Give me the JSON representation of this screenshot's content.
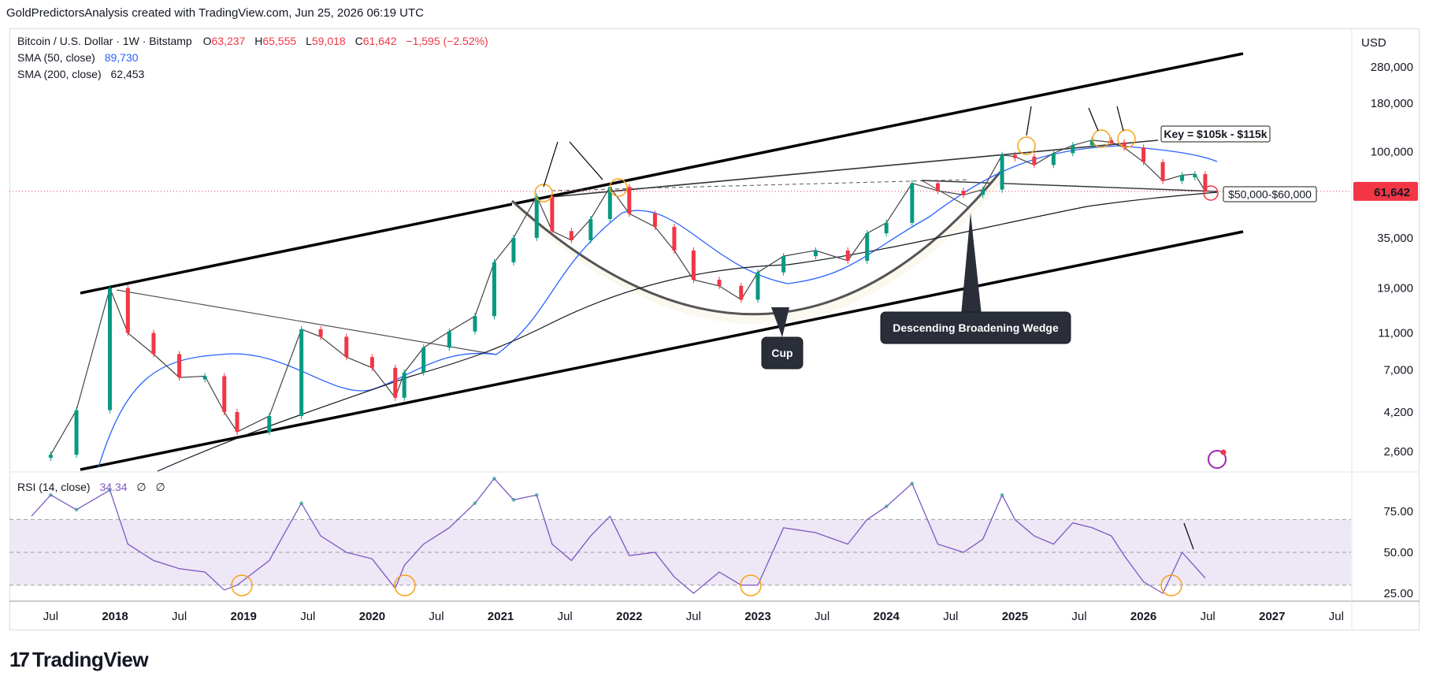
{
  "header": {
    "text": "GoldPredictorsAnalysis created with TradingView.com, Jun 25, 2026 06:19 UTC"
  },
  "legend": {
    "symbol": "Bitcoin / U.S. Dollar · 1W · Bitstamp",
    "open_label": "O",
    "open": "63,237",
    "high_label": "H",
    "high": "65,555",
    "low_label": "L",
    "low": "59,018",
    "close_label": "C",
    "close": "61,642",
    "change": "−1,595 (−2.52%)",
    "sma50_label": "SMA (50, close)",
    "sma50_value": "89,730",
    "sma200_label": "SMA (200, close)",
    "sma200_value": "62,453",
    "rsi_label": "RSI (14, close)",
    "rsi_value": "34.34",
    "rsi_extra1": "∅",
    "rsi_extra2": "∅"
  },
  "currency": "USD",
  "last_price_tag": "61,642",
  "colors": {
    "up": "#089981",
    "down": "#f23645",
    "sma50": "#2962ff",
    "sma200": "#131722",
    "rsi": "#7e57c2",
    "rsi_band": "#ede7f6",
    "price_tag": "#f23645",
    "orange": "#f7a21b"
  },
  "annotations": {
    "key_zone": "Key = $105k - $115k",
    "support_zone": "$50,000-$60,000",
    "cup": "Cup",
    "wedge": "Descending Broadening Wedge"
  },
  "brand": {
    "name": "TradingView",
    "mark": "17"
  },
  "chart_data": [
    {
      "type": "line",
      "name": "Bitcoin / U.S. Dollar weekly (approximate path)",
      "y_scale": "log",
      "y_ticks": [
        2600,
        4200,
        7000,
        11000,
        19000,
        35000,
        100000,
        180000,
        280000
      ],
      "y_tick_labels": [
        "2,600",
        "4,200",
        "7,000",
        "11,000",
        "19,000",
        "35,000",
        "100,000",
        "180,000",
        "280,000"
      ],
      "x_ticks": [
        "Jul",
        "2018",
        "Jul",
        "2019",
        "Jul",
        "2020",
        "Jul",
        "2021",
        "Jul",
        "2022",
        "Jul",
        "2023",
        "Jul",
        "2024",
        "Jul",
        "2025",
        "Jul",
        "2026",
        "Jul",
        "2027",
        "Jul"
      ],
      "x_range": [
        2017.3,
        2027.5
      ],
      "series": [
        {
          "name": "Close",
          "x": [
            2017.5,
            2017.7,
            2017.96,
            2018.1,
            2018.3,
            2018.5,
            2018.7,
            2018.85,
            2018.95,
            2019.2,
            2019.45,
            2019.6,
            2019.8,
            2020.0,
            2020.18,
            2020.25,
            2020.4,
            2020.6,
            2020.8,
            2020.95,
            2021.1,
            2021.28,
            2021.4,
            2021.55,
            2021.7,
            2021.85,
            2022.0,
            2022.2,
            2022.35,
            2022.5,
            2022.7,
            2022.87,
            2023.0,
            2023.2,
            2023.45,
            2023.7,
            2023.85,
            2024.0,
            2024.2,
            2024.4,
            2024.6,
            2024.75,
            2024.9,
            2025.0,
            2025.15,
            2025.3,
            2025.45,
            2025.6,
            2025.75,
            2025.85,
            2026.0,
            2026.15,
            2026.3,
            2026.4,
            2026.48
          ],
          "y": [
            2500,
            4300,
            19000,
            11000,
            8500,
            6400,
            6500,
            4200,
            3300,
            4000,
            11500,
            10500,
            8200,
            7200,
            5000,
            6800,
            9200,
            11200,
            13500,
            26000,
            35000,
            58000,
            38000,
            34000,
            44000,
            65000,
            47000,
            40000,
            30000,
            21000,
            19500,
            16500,
            23000,
            28000,
            30000,
            26500,
            37000,
            42000,
            68000,
            62000,
            59000,
            63000,
            96000,
            94000,
            85000,
            98000,
            108000,
            115000,
            112000,
            105000,
            88000,
            70000,
            75000,
            76000,
            61642
          ]
        },
        {
          "name": "SMA (50, close)",
          "value": 89730
        },
        {
          "name": "SMA (200, close)",
          "value": 62453
        }
      ]
    },
    {
      "type": "line",
      "name": "RSI (14, close)",
      "y_ticks": [
        25,
        50,
        75
      ],
      "y_tick_labels": [
        "25.00",
        "50.00",
        "75.00"
      ],
      "band": [
        30,
        70
      ],
      "series": [
        {
          "name": "RSI",
          "x": [
            2017.35,
            2017.5,
            2017.7,
            2017.96,
            2018.1,
            2018.3,
            2018.5,
            2018.7,
            2018.85,
            2018.95,
            2019.2,
            2019.45,
            2019.6,
            2019.8,
            2020.0,
            2020.18,
            2020.25,
            2020.4,
            2020.6,
            2020.8,
            2020.95,
            2021.1,
            2021.28,
            2021.4,
            2021.55,
            2021.7,
            2021.85,
            2022.0,
            2022.2,
            2022.35,
            2022.5,
            2022.7,
            2022.87,
            2023.0,
            2023.2,
            2023.45,
            2023.7,
            2023.85,
            2024.0,
            2024.2,
            2024.4,
            2024.6,
            2024.75,
            2024.9,
            2025.0,
            2025.15,
            2025.3,
            2025.45,
            2025.6,
            2025.75,
            2025.85,
            2026.0,
            2026.15,
            2026.3,
            2026.48
          ],
          "y": [
            72,
            85,
            76,
            88,
            55,
            45,
            40,
            38,
            27,
            30,
            45,
            80,
            60,
            50,
            46,
            28,
            42,
            55,
            65,
            80,
            95,
            82,
            85,
            55,
            45,
            60,
            72,
            48,
            50,
            35,
            25,
            38,
            30,
            30,
            65,
            62,
            55,
            70,
            78,
            92,
            55,
            50,
            58,
            85,
            70,
            60,
            55,
            68,
            65,
            60,
            48,
            32,
            25,
            50,
            34.34
          ]
        }
      ]
    }
  ]
}
